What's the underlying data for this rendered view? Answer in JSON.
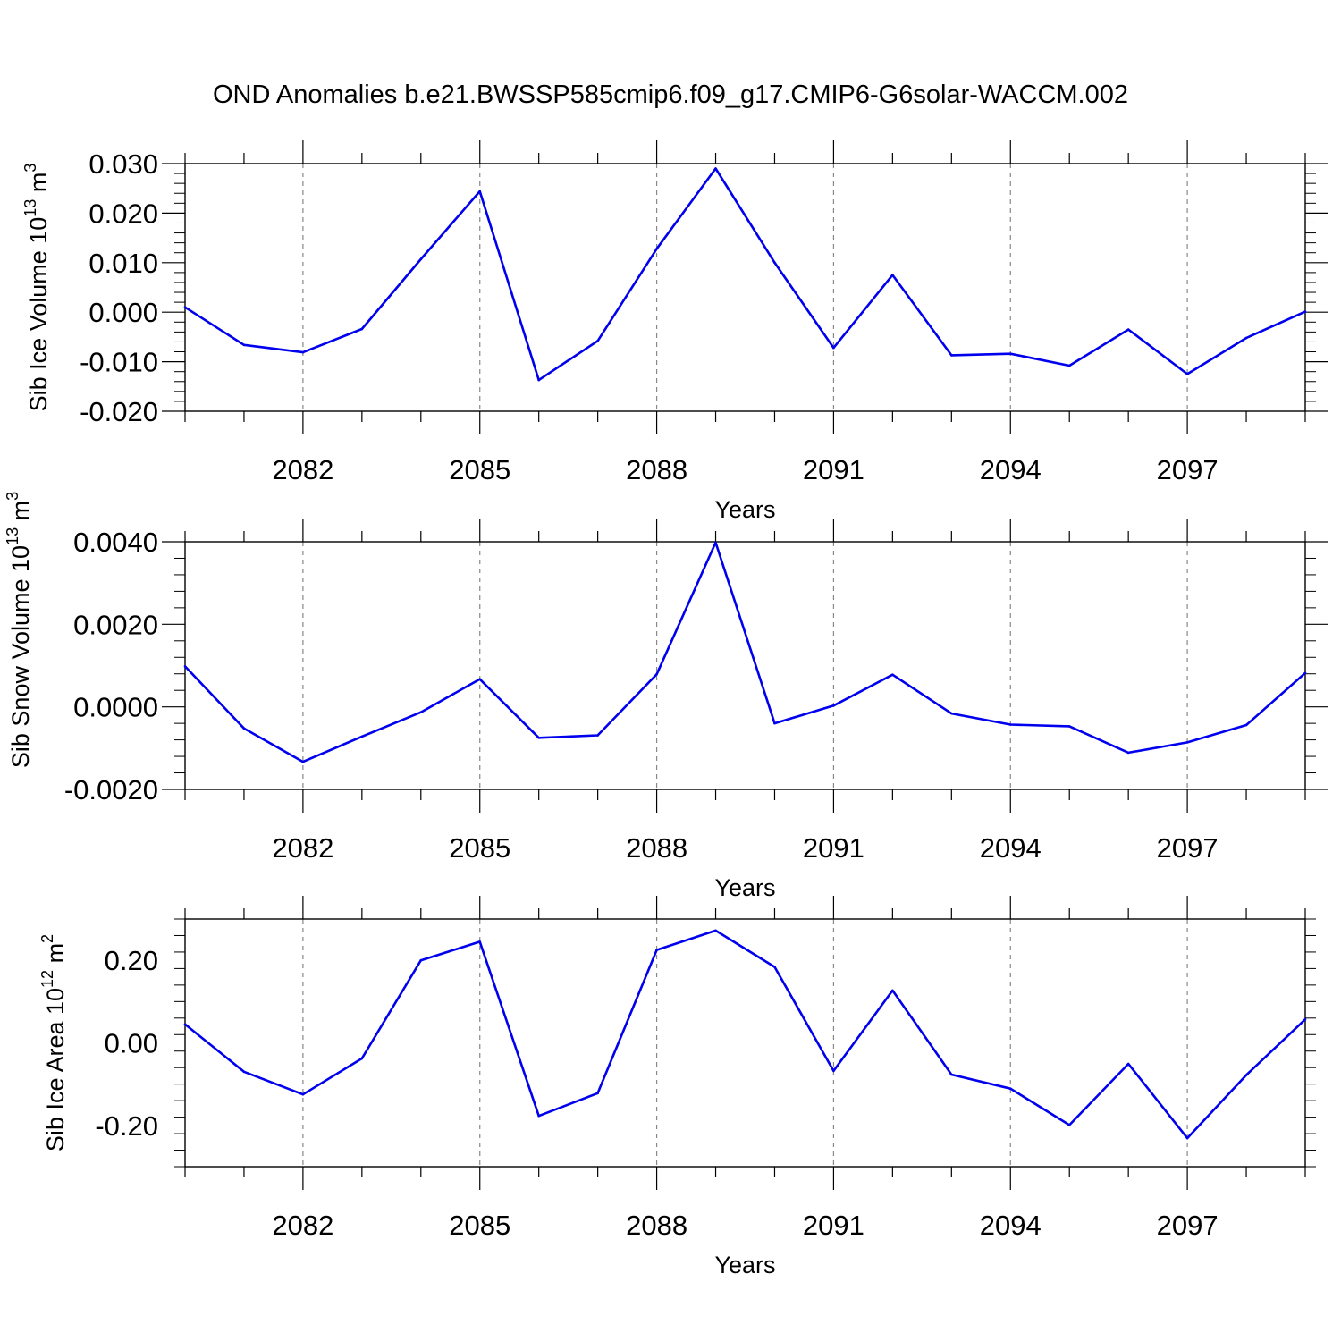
{
  "title": "OND Anomalies b.e21.BWSSP585cmip6.f09_g17.CMIP6-G6solar-WACCM.002",
  "chart_data": [
    {
      "type": "line",
      "ylabel": "Sib Ice Volume 10",
      "ylabel_exp": "13",
      "ylabel_unit": "m",
      "ylabel_unit_exp": "3",
      "xlabel": "Years",
      "xlim": [
        2080,
        2099
      ],
      "ylim": [
        -0.02,
        0.03
      ],
      "yticks": [
        -0.02,
        -0.01,
        0.0,
        0.01,
        0.02,
        0.03
      ],
      "yticklabels": [
        "-0.020",
        "-0.010",
        "0.000",
        "0.010",
        "0.020",
        "0.030"
      ],
      "xticks": [
        2082,
        2085,
        2088,
        2091,
        2094,
        2097
      ],
      "xticklabels": [
        "2082",
        "2085",
        "2088",
        "2091",
        "2094",
        "2097"
      ],
      "x": [
        2080,
        2081,
        2082,
        2083,
        2084,
        2085,
        2086,
        2087,
        2088,
        2089,
        2090,
        2091,
        2092,
        2093,
        2094,
        2095,
        2096,
        2097,
        2098,
        2099
      ],
      "values": [
        0.001,
        -0.0066,
        -0.0081,
        -0.0034,
        0.0107,
        0.0244,
        -0.0137,
        -0.0058,
        0.0128,
        0.029,
        0.01,
        -0.0072,
        0.0075,
        -0.0087,
        -0.0084,
        -0.0108,
        -0.0035,
        -0.0125,
        -0.0052,
        0.0001
      ],
      "color": "#0000ee",
      "grid": "vertical-dashed"
    },
    {
      "type": "line",
      "ylabel": "Sib Snow Volume 10",
      "ylabel_exp": "13",
      "ylabel_unit": "m",
      "ylabel_unit_exp": "3",
      "xlabel": "Years",
      "xlim": [
        2080,
        2099
      ],
      "ylim": [
        -0.002,
        0.004
      ],
      "yticks": [
        -0.002,
        0.0,
        0.002,
        0.004
      ],
      "yticklabels": [
        "-0.0020",
        "0.0000",
        "0.0020",
        "0.0040"
      ],
      "xticks": [
        2082,
        2085,
        2088,
        2091,
        2094,
        2097
      ],
      "xticklabels": [
        "2082",
        "2085",
        "2088",
        "2091",
        "2094",
        "2097"
      ],
      "x": [
        2080,
        2081,
        2082,
        2083,
        2084,
        2085,
        2086,
        2087,
        2088,
        2089,
        2090,
        2091,
        2092,
        2093,
        2094,
        2095,
        2096,
        2097,
        2098,
        2099
      ],
      "values": [
        0.00098,
        -0.00052,
        -0.00133,
        -0.00072,
        -0.00013,
        0.00067,
        -0.00075,
        -0.00069,
        0.00079,
        0.00398,
        -0.0004,
        3e-05,
        0.00078,
        -0.00016,
        -0.00043,
        -0.00047,
        -0.00111,
        -0.00086,
        -0.00044,
        0.00082
      ],
      "color": "#0000ee",
      "grid": "vertical-dashed"
    },
    {
      "type": "line",
      "ylabel": "Sib Ice Area 10",
      "ylabel_exp": "12",
      "ylabel_unit": "m",
      "ylabel_unit_exp": "2",
      "xlabel": "Years",
      "xlim": [
        2080,
        2099
      ],
      "ylim": [
        -0.3,
        0.3
      ],
      "yticks": [
        -0.2,
        0.0,
        0.2
      ],
      "yticklabels": [
        "-0.20",
        "0.00",
        "0.20"
      ],
      "xticks": [
        2082,
        2085,
        2088,
        2091,
        2094,
        2097
      ],
      "xticklabels": [
        "2082",
        "2085",
        "2088",
        "2091",
        "2094",
        "2097"
      ],
      "x": [
        2080,
        2081,
        2082,
        2083,
        2084,
        2085,
        2086,
        2087,
        2088,
        2089,
        2090,
        2091,
        2092,
        2093,
        2094,
        2095,
        2096,
        2097,
        2098,
        2099
      ],
      "values": [
        0.045,
        -0.07,
        -0.125,
        -0.038,
        0.2,
        0.245,
        -0.177,
        -0.122,
        0.225,
        0.272,
        0.184,
        -0.068,
        0.127,
        -0.077,
        -0.111,
        -0.199,
        -0.051,
        -0.231,
        -0.078,
        0.057
      ],
      "color": "#0000ee",
      "grid": "vertical-dashed"
    }
  ]
}
